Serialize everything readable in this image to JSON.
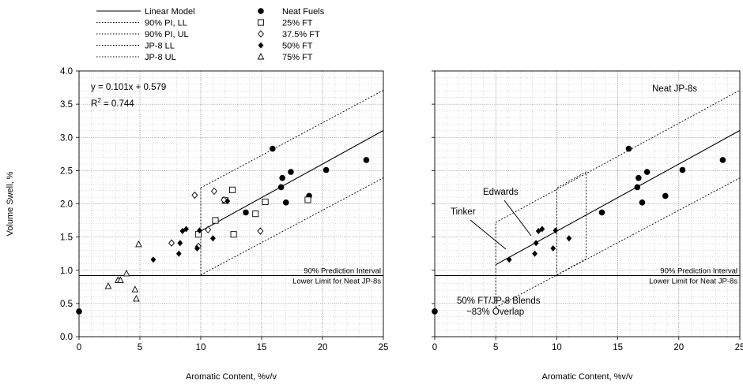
{
  "legend": {
    "lines": [
      {
        "label": "Linear Model",
        "style": "solid"
      },
      {
        "label": "90% PI, LL",
        "style": "dotted"
      },
      {
        "label": "90% PI, UL",
        "style": "dotted"
      },
      {
        "label": "JP-8 LL",
        "style": "dotted"
      },
      {
        "label": "JP-8 UL",
        "style": "dotted"
      }
    ],
    "markers": [
      {
        "label": "Neat Fuels",
        "marker": "filled-circle"
      },
      {
        "label": "25% FT",
        "marker": "open-square"
      },
      {
        "label": "37.5% FT",
        "marker": "open-diamond"
      },
      {
        "label": "50% FT",
        "marker": "filled-diamond"
      },
      {
        "label": "75% FT",
        "marker": "open-triangle"
      }
    ]
  },
  "chart_data": [
    {
      "type": "scatter",
      "panel": "left",
      "xlabel": "Aromatic Content, %v/v",
      "ylabel": "Volume Swell, %",
      "xlim": [
        0,
        25
      ],
      "ylim": [
        0,
        4.0
      ],
      "xticks": [
        0,
        5,
        10,
        15,
        20,
        25
      ],
      "yticks": [
        "0.0",
        "0.5",
        "1.0",
        "1.5",
        "2.0",
        "2.5",
        "3.0",
        "3.5",
        "4.0"
      ],
      "grid": "dotted minor and major",
      "annotations": {
        "equation": "y = 0.101x + 0.579",
        "r2_prefix": "R",
        "r2_exp": "2",
        "r2_value": " = 0.744",
        "hline_label_1": "90% Prediction Interval",
        "hline_label_2": "Lower Limit for Neat JP-8s"
      },
      "hline_y": 0.92,
      "model": {
        "slope": 0.101,
        "intercept": 0.579,
        "x_range": [
          10,
          25
        ]
      },
      "pi_band": {
        "ll": [
          [
            10,
            0.93
          ],
          [
            25,
            2.39
          ]
        ],
        "ul": [
          [
            10,
            2.24
          ],
          [
            25,
            3.71
          ]
        ]
      },
      "series": [
        {
          "name": "Neat Fuels",
          "marker": "filled-circle",
          "points": [
            [
              0,
              0.38
            ],
            [
              13.7,
              1.87
            ],
            [
              15.9,
              2.83
            ],
            [
              16.6,
              2.25
            ],
            [
              16.7,
              2.39
            ],
            [
              17.0,
              2.02
            ],
            [
              17.4,
              2.48
            ],
            [
              18.9,
              2.12
            ],
            [
              20.3,
              2.51
            ],
            [
              23.6,
              2.66
            ]
          ]
        },
        {
          "name": "25% FT",
          "marker": "open-square",
          "points": [
            [
              9.8,
              1.54
            ],
            [
              11.2,
              1.75
            ],
            [
              12.0,
              2.05
            ],
            [
              12.6,
              2.21
            ],
            [
              12.7,
              1.54
            ],
            [
              14.5,
              1.85
            ],
            [
              15.3,
              2.03
            ],
            [
              18.8,
              2.06
            ]
          ]
        },
        {
          "name": "37.5% FT",
          "marker": "open-diamond",
          "points": [
            [
              7.6,
              1.41
            ],
            [
              9.5,
              2.13
            ],
            [
              9.8,
              1.36
            ],
            [
              10.6,
              1.61
            ],
            [
              11.1,
              2.19
            ],
            [
              11.9,
              2.06
            ],
            [
              14.9,
              1.59
            ]
          ]
        },
        {
          "name": "50% FT",
          "marker": "filled-diamond",
          "points": [
            [
              6.1,
              1.16
            ],
            [
              8.2,
              1.25
            ],
            [
              8.3,
              1.41
            ],
            [
              8.5,
              1.59
            ],
            [
              8.8,
              1.62
            ],
            [
              9.7,
              1.33
            ],
            [
              9.9,
              1.6
            ],
            [
              11.0,
              1.48
            ],
            [
              12.2,
              2.04
            ]
          ]
        },
        {
          "name": "75% FT",
          "marker": "open-triangle",
          "points": [
            [
              2.4,
              0.76
            ],
            [
              3.2,
              0.85
            ],
            [
              3.4,
              0.85
            ],
            [
              3.9,
              0.95
            ],
            [
              4.6,
              0.71
            ],
            [
              4.7,
              0.57
            ],
            [
              4.9,
              1.39
            ]
          ]
        }
      ]
    },
    {
      "type": "scatter",
      "panel": "right",
      "xlabel": "Aromatic Content, %v/v",
      "ylabel": "",
      "xlim": [
        0,
        25
      ],
      "ylim": [
        0,
        4.0
      ],
      "xticks": [
        0,
        5,
        10,
        15,
        20,
        25
      ],
      "grid": "dotted minor and major",
      "annotations": {
        "title": "Neat JP-8s",
        "edwards": "Edwards",
        "tinker": "Tinker",
        "blend_label_1": "50% FT/JP-8 Blends",
        "blend_label_2": "~83% Overlap",
        "hline_label_1": "90% Prediction Interval",
        "hline_label_2": "Lower Limit for Neat JP-8s"
      },
      "hline_y": 0.92,
      "model": {
        "slope": 0.101,
        "intercept": 0.579,
        "x_range": [
          5,
          25
        ]
      },
      "pi_band": {
        "ll": [
          [
            5,
            0.44
          ],
          [
            25,
            2.39
          ]
        ],
        "ul": [
          [
            5,
            1.72
          ],
          [
            25,
            3.71
          ]
        ]
      },
      "jp8_box": {
        "ll": [
          [
            10,
            0.93
          ],
          [
            12.4,
            1.17
          ]
        ],
        "ul": [
          [
            10,
            2.24
          ],
          [
            12.4,
            2.48
          ]
        ]
      },
      "series": [
        {
          "name": "Neat Fuels",
          "marker": "filled-circle",
          "points": [
            [
              0,
              0.38
            ],
            [
              13.7,
              1.87
            ],
            [
              15.9,
              2.83
            ],
            [
              16.6,
              2.25
            ],
            [
              16.7,
              2.39
            ],
            [
              17.0,
              2.02
            ],
            [
              17.4,
              2.48
            ],
            [
              18.9,
              2.12
            ],
            [
              20.3,
              2.51
            ],
            [
              23.6,
              2.66
            ]
          ]
        },
        {
          "name": "50% FT",
          "marker": "filled-diamond",
          "points": [
            [
              6.1,
              1.16
            ],
            [
              8.2,
              1.25
            ],
            [
              8.3,
              1.41
            ],
            [
              8.5,
              1.59
            ],
            [
              8.8,
              1.62
            ],
            [
              9.7,
              1.33
            ],
            [
              9.9,
              1.6
            ],
            [
              11.0,
              1.48
            ]
          ]
        }
      ]
    }
  ]
}
